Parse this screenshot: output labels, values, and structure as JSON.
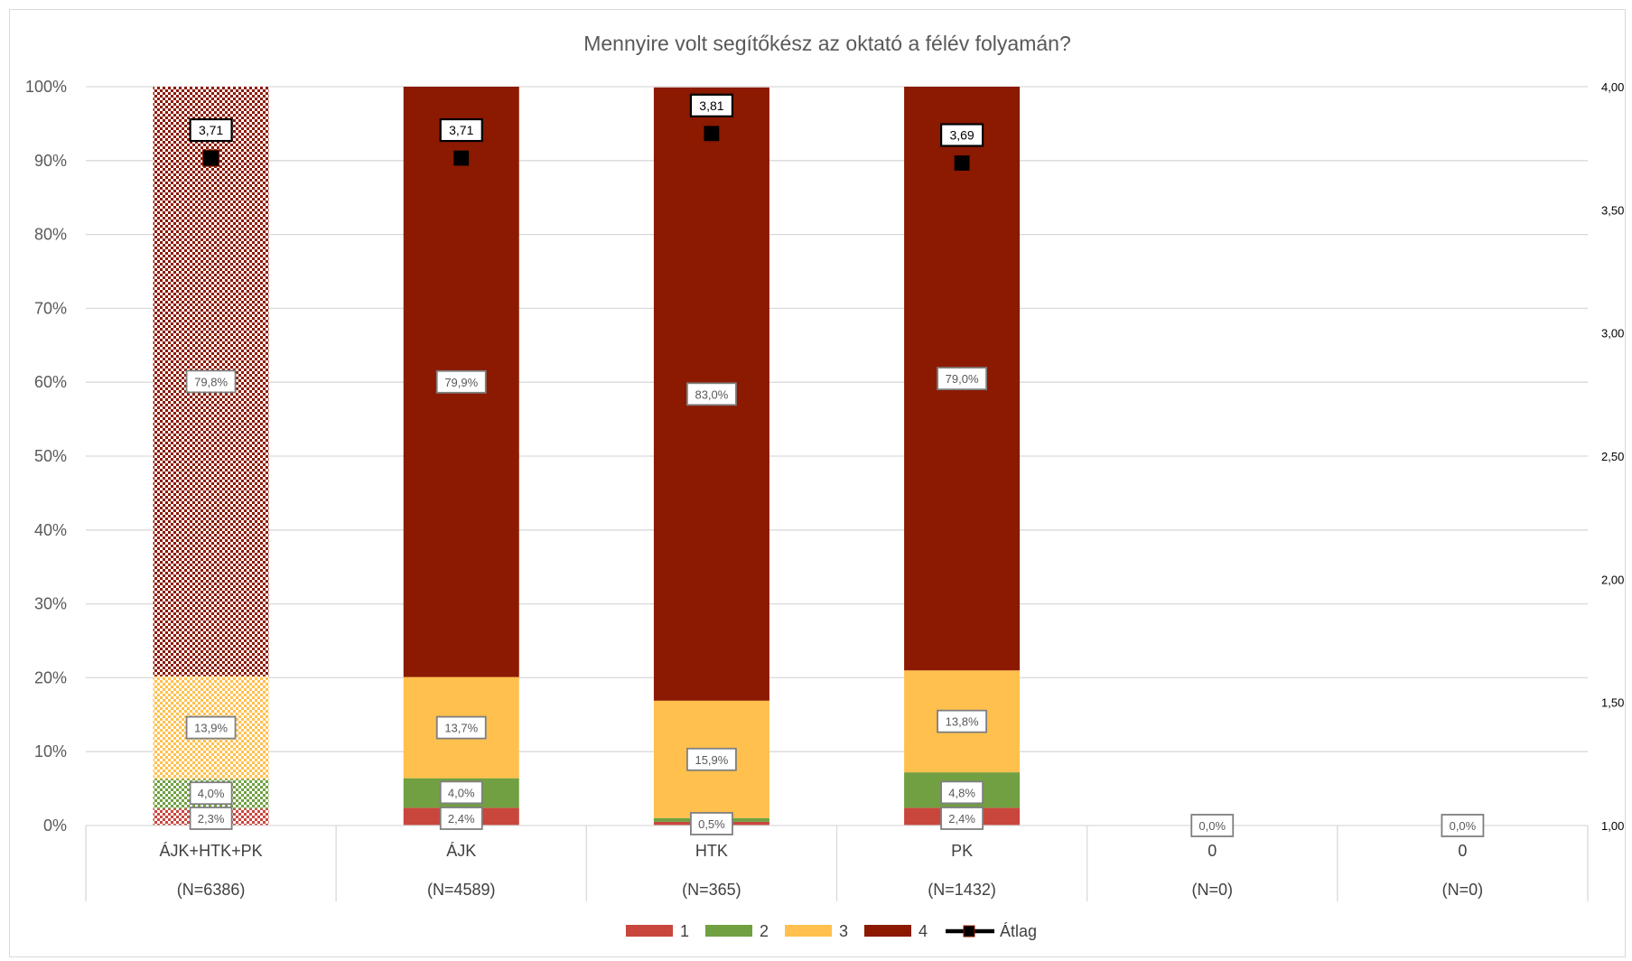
{
  "chart_data": {
    "type": "bar",
    "stacked": true,
    "title": "Mennyire volt segítőkész az oktató a félév folyamán?",
    "categories": [
      "ÁJK+HTK+PK",
      "ÁJK",
      "HTK",
      "PK",
      "0",
      "0"
    ],
    "category_counts": [
      "(N=6386)",
      "(N=4589)",
      "(N=365)",
      "(N=1432)",
      "(N=0)",
      "(N=0)"
    ],
    "y_axis": {
      "ticks": [
        "0%",
        "10%",
        "20%",
        "30%",
        "40%",
        "50%",
        "60%",
        "70%",
        "80%",
        "90%",
        "100%"
      ],
      "min": 0,
      "max": 100
    },
    "y2_axis": {
      "ticks": [
        "1,00",
        "1,50",
        "2,00",
        "2,50",
        "3,00",
        "3,50",
        "4,00"
      ],
      "min": 1,
      "max": 4
    },
    "series": [
      {
        "name": "1",
        "color": "#c9463d",
        "values": [
          2.3,
          2.4,
          0.5,
          2.4,
          0,
          0
        ],
        "labels": [
          "2,3%",
          "2,4%",
          "0,5%",
          "2,4%",
          "0,0%",
          "0,0%"
        ]
      },
      {
        "name": "2",
        "color": "#70a041",
        "values": [
          4.0,
          4.0,
          0.5,
          4.8,
          0,
          0
        ],
        "labels": [
          "4,0%",
          "4,0%",
          "",
          "4,8%",
          "",
          ""
        ]
      },
      {
        "name": "3",
        "color": "#ffc04d",
        "values": [
          13.9,
          13.7,
          15.9,
          13.8,
          0,
          0
        ],
        "labels": [
          "13,9%",
          "13,7%",
          "15,9%",
          "13,8%",
          "",
          ""
        ]
      },
      {
        "name": "4",
        "color": "#8b1a00",
        "values": [
          79.8,
          79.9,
          83.0,
          79.0,
          0,
          0
        ],
        "labels": [
          "79,8%",
          "79,9%",
          "83,0%",
          "79,0%",
          "",
          ""
        ]
      }
    ],
    "average": {
      "name": "Átlag",
      "values": [
        3.71,
        3.71,
        3.81,
        3.69,
        null,
        null
      ],
      "labels": [
        "3,71",
        "3,71",
        "3,81",
        "3,69",
        "",
        ""
      ]
    },
    "patterned_first_bar": true,
    "grid": true,
    "legend_position": "bottom"
  }
}
